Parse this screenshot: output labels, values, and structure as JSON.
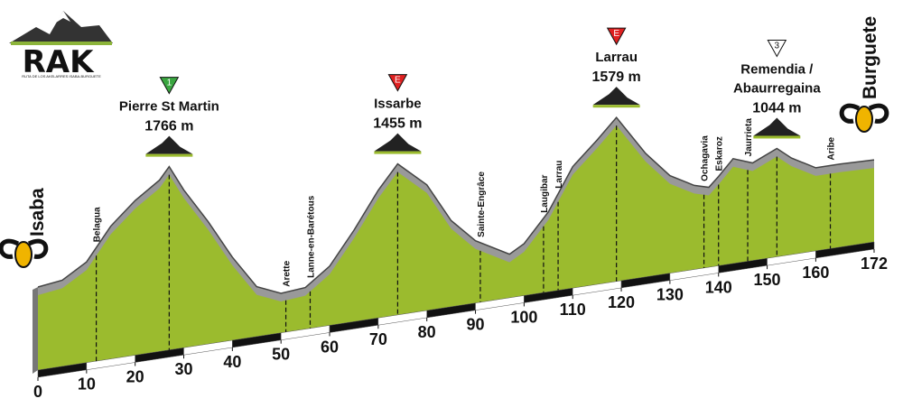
{
  "chart_data": {
    "type": "profile",
    "logo": {
      "title": "RAK",
      "subtitle": "RUTA DE LOS AKELARRES ISABA-BURGUETE"
    },
    "start": "Isaba",
    "end": "Burguete",
    "x": [
      0,
      5,
      10,
      15,
      20,
      25,
      27,
      30,
      35,
      40,
      45,
      50,
      55,
      60,
      65,
      70,
      74,
      80,
      85,
      90,
      97,
      100,
      105,
      110,
      115,
      119,
      125,
      130,
      135,
      138,
      140,
      143,
      147,
      152,
      155,
      160,
      165,
      172
    ],
    "values": [
      800,
      830,
      970,
      1280,
      1490,
      1650,
      1766,
      1520,
      1180,
      800,
      480,
      380,
      400,
      570,
      880,
      1230,
      1455,
      1210,
      830,
      600,
      420,
      500,
      770,
      1170,
      1390,
      1579,
      1190,
      940,
      810,
      770,
      860,
      1010,
      940,
      1044,
      930,
      800,
      800,
      790
    ],
    "xlim": [
      0,
      172
    ],
    "xticks": [
      0,
      10,
      20,
      30,
      40,
      50,
      60,
      70,
      80,
      90,
      100,
      110,
      120,
      130,
      140,
      150,
      160,
      172
    ],
    "fill_color": "#9bbb2e",
    "edge_color": "#999999",
    "summits": [
      {
        "km": 27,
        "name_lines": [
          "Pierre St Martin"
        ],
        "elevation": 1766,
        "elevation_label": "1766 m",
        "badge": "1",
        "badge_color": "#3aa640"
      },
      {
        "km": 74,
        "name_lines": [
          "Issarbe"
        ],
        "elevation": 1455,
        "elevation_label": "1455 m",
        "badge": "E",
        "badge_color": "#e02020"
      },
      {
        "km": 119,
        "name_lines": [
          "Larrau"
        ],
        "elevation": 1579,
        "elevation_label": "1579 m",
        "badge": "E",
        "badge_color": "#e02020"
      },
      {
        "km": 152,
        "name_lines": [
          "Remendia /",
          "Abaurregaina"
        ],
        "elevation": 1044,
        "elevation_label": "1044 m",
        "badge": "3",
        "badge_color": "#ffffff"
      }
    ],
    "towns": [
      {
        "name": "Belagua",
        "km": 12
      },
      {
        "name": "Arette",
        "km": 51
      },
      {
        "name": "Lanne-en-Barétous",
        "km": 56
      },
      {
        "name": "Sainte-Engrâce",
        "km": 91
      },
      {
        "name": "Laugibar",
        "km": 104
      },
      {
        "name": "Larrau",
        "km": 107
      },
      {
        "name": "Ochagavia",
        "km": 137
      },
      {
        "name": "Eskaroz",
        "km": 140
      },
      {
        "name": "Jaurrieta",
        "km": 146
      },
      {
        "name": "Aribe",
        "km": 163
      }
    ]
  }
}
